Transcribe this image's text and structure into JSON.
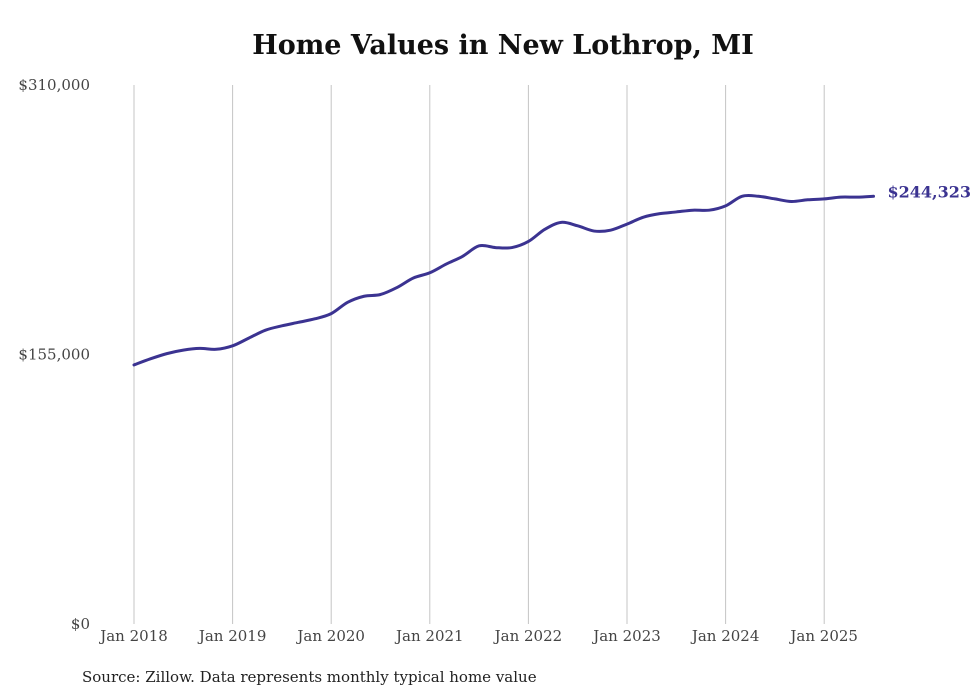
{
  "chart_data": {
    "type": "line",
    "title": "Home Values in New Lothrop, MI",
    "xlabel": "",
    "ylabel": "",
    "ylim": [
      0,
      310000
    ],
    "yticks": [
      0,
      155000,
      310000
    ],
    "ytick_labels": [
      "$0",
      "$155,000",
      "$310,000"
    ],
    "xticks": [
      "2018-01",
      "2019-01",
      "2020-01",
      "2021-01",
      "2022-01",
      "2023-01",
      "2024-01",
      "2025-01"
    ],
    "xtick_labels": [
      "Jan 2018",
      "Jan 2019",
      "Jan 2020",
      "Jan 2021",
      "Jan 2022",
      "Jan 2023",
      "Jan 2024",
      "Jan 2025"
    ],
    "grid": "vertical",
    "line_color": "#3b3391",
    "end_label": "$244,323",
    "series": [
      {
        "name": "",
        "x": [
          "2018-01",
          "2018-03",
          "2018-05",
          "2018-07",
          "2018-09",
          "2018-11",
          "2019-01",
          "2019-03",
          "2019-05",
          "2019-07",
          "2019-09",
          "2019-11",
          "2020-01",
          "2020-03",
          "2020-05",
          "2020-07",
          "2020-09",
          "2020-11",
          "2021-01",
          "2021-03",
          "2021-05",
          "2021-07",
          "2021-09",
          "2021-11",
          "2022-01",
          "2022-03",
          "2022-05",
          "2022-07",
          "2022-09",
          "2022-11",
          "2023-01",
          "2023-03",
          "2023-05",
          "2023-07",
          "2023-09",
          "2023-11",
          "2024-01",
          "2024-03",
          "2024-05",
          "2024-07",
          "2024-09",
          "2024-11",
          "2025-01",
          "2025-03",
          "2025-05",
          "2025-07"
        ],
        "values": [
          149000,
          152500,
          155500,
          157500,
          158500,
          158000,
          160000,
          164500,
          169000,
          171500,
          173500,
          175500,
          178500,
          185000,
          188500,
          189500,
          193500,
          199000,
          202000,
          207000,
          211500,
          217500,
          216500,
          216500,
          220000,
          227000,
          231000,
          229000,
          226000,
          226500,
          230000,
          234000,
          236000,
          237000,
          238000,
          238000,
          240500,
          246000,
          246000,
          244500,
          243000,
          244000,
          244500,
          245500,
          245500,
          246000
        ]
      }
    ]
  },
  "footer": {
    "source": "Source: Zillow. Data represents monthly typical home value"
  }
}
